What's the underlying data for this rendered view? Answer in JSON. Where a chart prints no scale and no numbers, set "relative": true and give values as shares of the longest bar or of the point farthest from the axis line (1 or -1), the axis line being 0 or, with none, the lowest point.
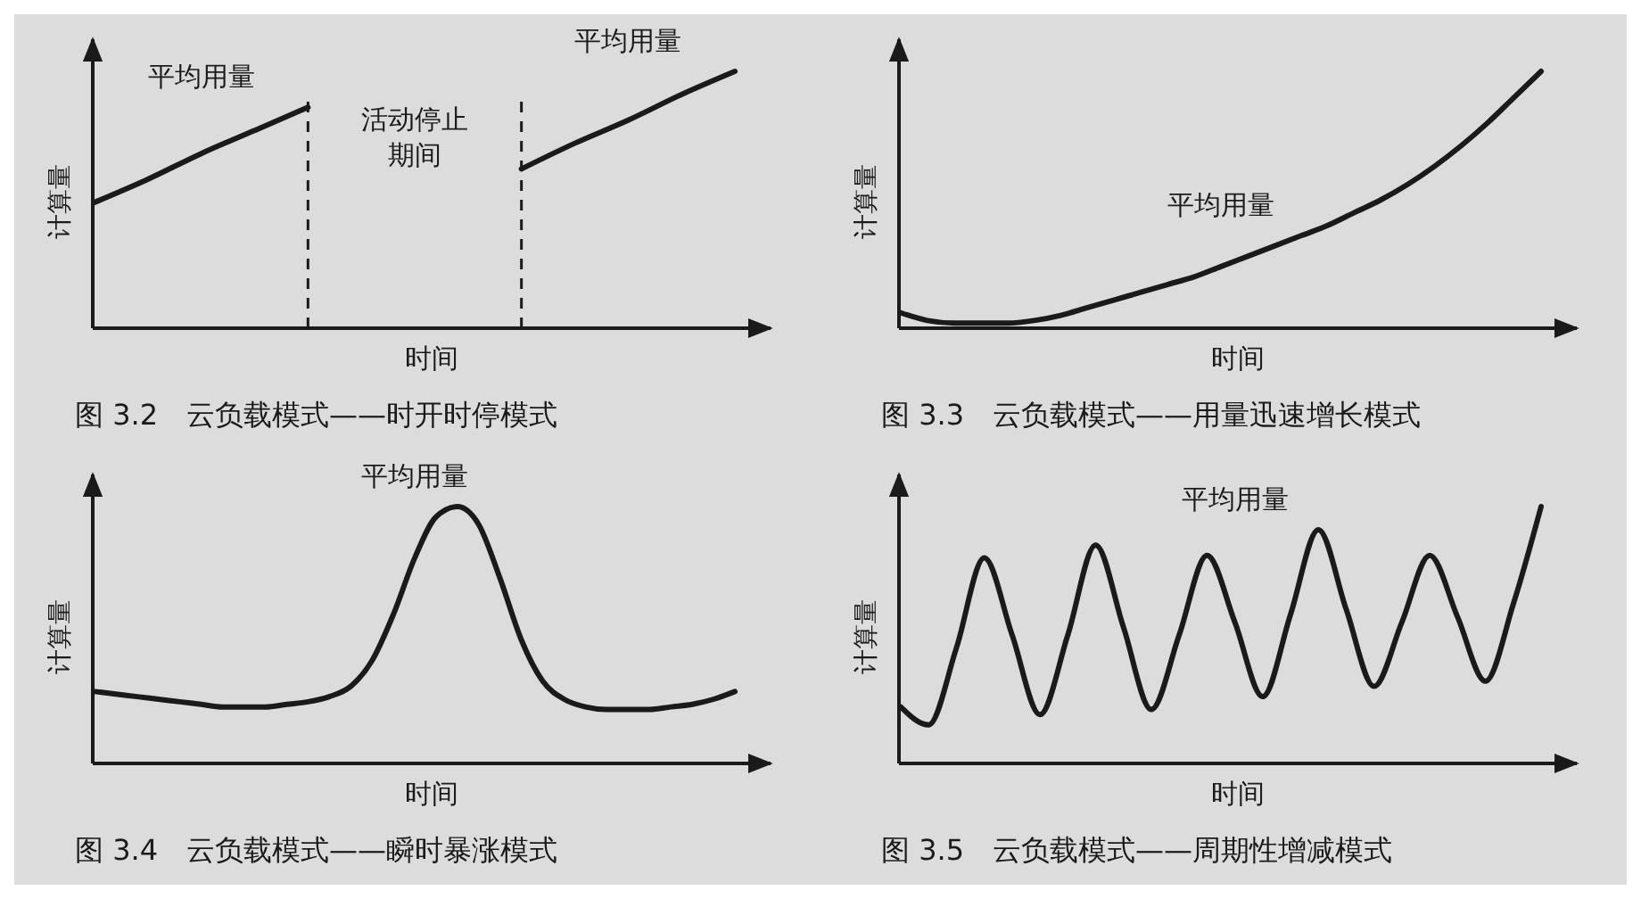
{
  "chart_data": [
    {
      "type": "line",
      "title": "图 3.2　云负载模式——时开时停模式",
      "xlabel": "时间",
      "ylabel": "计算量",
      "relative": true,
      "categories": [
        null,
        null,
        null,
        null,
        null,
        null,
        null,
        null,
        null,
        null,
        null,
        null,
        null
      ],
      "series": [
        {
          "name": "平均用量",
          "color": "#1a1a1a",
          "values": [
            0.49,
            0.58,
            0.68,
            0.77,
            0.86,
            null,
            null,
            null,
            null,
            null,
            null,
            null,
            null
          ]
        },
        {
          "name": "平均用量",
          "color": "#1a1a1a",
          "values": [
            null,
            null,
            null,
            null,
            null,
            null,
            null,
            null,
            0.62,
            0.72,
            0.81,
            0.91,
            1.0
          ]
        }
      ],
      "annotations": [
        "活动停止期间"
      ]
    },
    {
      "type": "line",
      "title": "图 3.3　云负载模式——用量迅速增长模式",
      "xlabel": "时间",
      "ylabel": "计算量",
      "relative": true,
      "categories": [
        null,
        null,
        null,
        null,
        null,
        null,
        null,
        null,
        null,
        null,
        null,
        null,
        null,
        null,
        null,
        null,
        null,
        null,
        null,
        null,
        null,
        null,
        null,
        null,
        null
      ],
      "series": [
        {
          "name": "平均用量",
          "color": "#1a1a1a",
          "values": [
            0.06,
            0.03,
            0.02,
            0.02,
            0.02,
            0.03,
            0.05,
            0.08,
            0.11,
            0.14,
            0.17,
            0.2,
            0.24,
            0.28,
            0.32,
            0.36,
            0.4,
            0.45,
            0.5,
            0.56,
            0.63,
            0.71,
            0.8,
            0.9,
            1.0
          ]
        }
      ]
    },
    {
      "type": "line",
      "title": "图 3.4　云负载模式——瞬时暴涨模式",
      "xlabel": "时间",
      "ylabel": "计算量",
      "relative": true,
      "categories": [
        null,
        null,
        null,
        null,
        null,
        null,
        null,
        null,
        null,
        null,
        null,
        null,
        null,
        null,
        null,
        null,
        null,
        null,
        null,
        null,
        null,
        null,
        null,
        null,
        null,
        null,
        null,
        null,
        null,
        null,
        null
      ],
      "series": [
        {
          "name": "平均用量",
          "color": "#1a1a1a",
          "values": [
            0.28,
            0.27,
            0.26,
            0.25,
            0.24,
            0.23,
            0.22,
            0.22,
            0.22,
            0.23,
            0.24,
            0.26,
            0.3,
            0.4,
            0.58,
            0.8,
            0.96,
            1.0,
            0.93,
            0.72,
            0.48,
            0.32,
            0.25,
            0.22,
            0.21,
            0.21,
            0.21,
            0.22,
            0.23,
            0.25,
            0.28
          ]
        }
      ]
    },
    {
      "type": "line",
      "title": "图 3.5　云负载模式——周期性增减模式",
      "xlabel": "时间",
      "ylabel": "计算量",
      "relative": true,
      "categories": [
        null,
        null,
        null,
        null,
        null,
        null,
        null,
        null,
        null,
        null,
        null,
        null,
        null,
        null,
        null,
        null,
        null,
        null,
        null,
        null,
        null,
        null,
        null,
        null
      ],
      "series": [
        {
          "name": "平均用量",
          "color": "#1a1a1a",
          "values": [
            0.22,
            0.15,
            0.45,
            0.8,
            0.5,
            0.19,
            0.5,
            0.85,
            0.53,
            0.21,
            0.5,
            0.81,
            0.55,
            0.26,
            0.58,
            0.91,
            0.6,
            0.3,
            0.55,
            0.81,
            0.57,
            0.32,
            0.62,
            1.0
          ]
        }
      ]
    }
  ]
}
